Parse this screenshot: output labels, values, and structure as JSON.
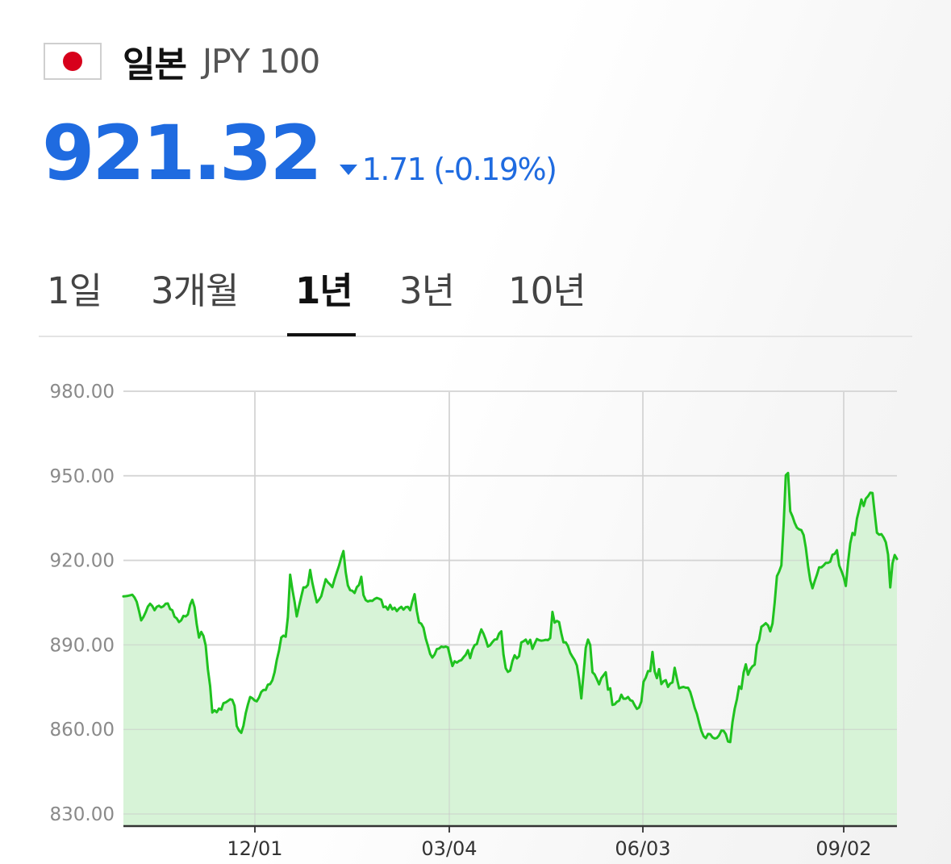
{
  "header": {
    "country": "일본",
    "currency": "JPY 100",
    "flag_icon": "japan-flag-icon"
  },
  "quote": {
    "price": "921.32",
    "change": "1.71",
    "change_percent": "(-0.19%)",
    "direction": "down",
    "color": "#1f6be0"
  },
  "tabs": [
    {
      "label": "1일",
      "active": false
    },
    {
      "label": "3개월",
      "active": false
    },
    {
      "label": "1년",
      "active": true
    },
    {
      "label": "3년",
      "active": false
    },
    {
      "label": "10년",
      "active": false
    }
  ],
  "chart_data": {
    "type": "area",
    "title": "",
    "xlabel": "",
    "ylabel": "",
    "ylim": [
      830,
      980
    ],
    "y_ticks": [
      "980.00",
      "950.00",
      "920.00",
      "890.00",
      "860.00",
      "830.00"
    ],
    "x_ticks": [
      "12/01",
      "03/04",
      "06/03",
      "09/02"
    ],
    "grid": true,
    "line_color": "#1fc21f",
    "fill_color": "#d7f3d7",
    "series": [
      {
        "values": [
          907.2,
          907.3,
          907.4,
          907.6,
          907.8,
          906.8,
          905.3,
          902.1,
          898.7,
          899.9,
          901.6,
          903.6,
          904.6,
          903.8,
          902.3,
          903.5,
          903.9,
          903.3,
          903.7,
          904.6,
          904.7,
          902.7,
          902.3,
          900.0,
          899.4,
          898.1,
          898.7,
          900.3,
          900.1,
          900.8,
          904.2,
          906.0,
          903.4,
          897.3,
          892.6,
          894.6,
          893.2,
          889.8,
          881.4,
          875.4,
          866.0,
          866.8,
          866.1,
          867.4,
          867.0,
          869.3,
          869.6,
          870.1,
          870.7,
          870.5,
          868.4,
          861.2,
          859.6,
          858.8,
          861.3,
          865.7,
          868.8,
          871.5,
          871.1,
          870.3,
          870.0,
          871.3,
          873.3,
          874.0,
          874.0,
          875.9,
          876.1,
          877.4,
          880.3,
          884.6,
          888.0,
          892.6,
          893.3,
          892.9,
          899.9,
          914.9,
          909.8,
          905.3,
          900.1,
          903.7,
          907.2,
          910.4,
          910.4,
          911.3,
          916.6,
          912.1,
          908.5,
          905.1,
          906.0,
          907.3,
          910.3,
          913.3,
          912.2,
          911.4,
          910.5,
          913.3,
          915.8,
          918.1,
          921.0,
          923.3,
          915.8,
          911.1,
          909.4,
          909.2,
          908.4,
          910.5,
          911.3,
          914.2,
          907.7,
          905.9,
          905.4,
          905.7,
          905.6,
          906.3,
          906.7,
          906.4,
          906.0,
          903.4,
          903.6,
          902.5,
          904.2,
          902.6,
          903.2,
          902.0,
          902.9,
          903.5,
          902.5,
          903.4,
          903.5,
          902.3,
          905.4,
          908.0,
          902.0,
          898.0,
          897.5,
          896.1,
          892.3,
          889.7,
          886.8,
          885.5,
          886.6,
          888.5,
          888.7,
          889.4,
          889.2,
          889.4,
          889.1,
          885.7,
          882.5,
          884.2,
          883.7,
          884.3,
          884.6,
          885.6,
          886.5,
          888.1,
          885.3,
          888.3,
          889.9,
          890.3,
          893.1,
          895.5,
          894.0,
          891.9,
          889.4,
          889.9,
          891.0,
          891.9,
          892.0,
          894.0,
          894.8,
          886.6,
          881.7,
          880.4,
          880.9,
          884.3,
          886.3,
          885.2,
          886.0,
          890.9,
          891.3,
          891.9,
          890.4,
          891.8,
          888.6,
          890.4,
          892.1,
          891.7,
          891.5,
          891.6,
          891.8,
          891.7,
          892.4,
          901.7,
          897.9,
          898.5,
          898.1,
          894.1,
          890.9,
          890.9,
          889.6,
          887.2,
          885.8,
          884.6,
          882.7,
          877.9,
          871.0,
          879.6,
          889.0,
          891.9,
          890.0,
          880.3,
          879.5,
          877.8,
          876.0,
          878.2,
          879.2,
          880.3,
          874.1,
          874.6,
          868.7,
          868.9,
          869.8,
          870.2,
          872.3,
          870.9,
          870.9,
          871.5,
          870.4,
          870.1,
          868.6,
          867.3,
          867.8,
          869.9,
          876.9,
          878.4,
          880.7,
          880.7,
          887.5,
          880.6,
          878.2,
          881.4,
          876.1,
          877.1,
          877.5,
          875.1,
          876.3,
          876.7,
          881.9,
          878.1,
          874.6,
          874.9,
          875.1,
          874.8,
          874.8,
          873.3,
          870.6,
          867.7,
          865.5,
          862.4,
          859.5,
          857.6,
          856.9,
          858.4,
          858.3,
          857.2,
          856.8,
          857.0,
          857.9,
          859.6,
          859.5,
          858.3,
          855.7,
          855.5,
          862.6,
          867.3,
          870.7,
          875.3,
          874.4,
          880.2,
          883.1,
          879.4,
          881.3,
          882.4,
          883.0,
          890.1,
          891.8,
          896.4,
          897.0,
          897.7,
          896.9,
          894.8,
          897.6,
          905.0,
          914.4,
          916.0,
          918.2,
          932.6,
          950.2,
          951.0,
          937.4,
          935.6,
          933.3,
          931.6,
          931.0,
          930.7,
          929.0,
          924.5,
          918.0,
          913.0,
          910.1,
          912.6,
          914.9,
          917.5,
          917.5,
          918.2,
          919.1,
          919.1,
          919.5,
          922.0,
          922.3,
          923.6,
          918.2,
          916.3,
          914.1,
          910.9,
          919.3,
          926.0,
          929.7,
          929.0,
          934.8,
          938.1,
          941.6,
          939.3,
          941.9,
          942.8,
          944.0,
          943.9,
          936.8,
          929.8,
          929.1,
          929.3,
          928.1,
          926.4,
          922.0,
          910.4,
          919.0,
          921.9,
          920.5
        ]
      }
    ]
  }
}
